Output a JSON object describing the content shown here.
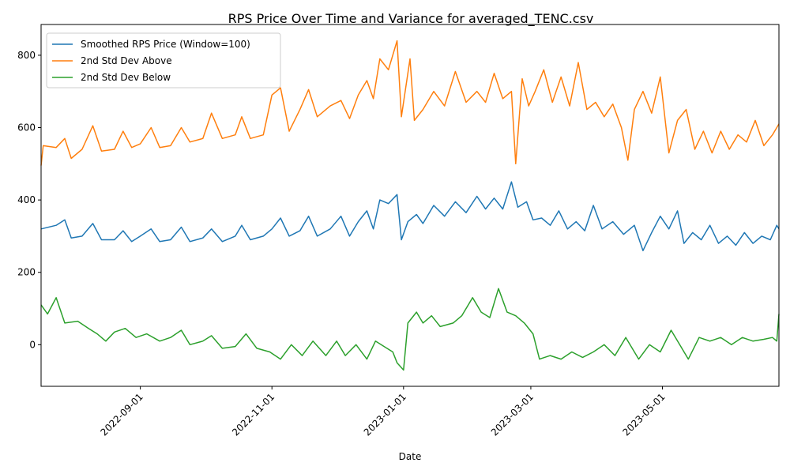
{
  "chart_data": {
    "type": "line",
    "title": "RPS Price Over Time and Variance for averaged_TENC.csv",
    "xlabel": "Date",
    "ylabel": "",
    "x_range": [
      "2022-07-17",
      "2023-06-24"
    ],
    "ylim": [
      -115,
      885
    ],
    "grid": false,
    "legend_position": "top-left",
    "x_ticks": [
      "2022-09-01",
      "2022-11-01",
      "2023-01-01",
      "2023-03-01",
      "2023-05-01"
    ],
    "y_ticks": [
      0,
      200,
      400,
      600,
      800
    ],
    "series": [
      {
        "name": "Smoothed RPS Price (Window=100)",
        "color": "#1f77b4",
        "points": [
          [
            "2022-07-17",
            320
          ],
          [
            "2022-07-24",
            330
          ],
          [
            "2022-07-28",
            345
          ],
          [
            "2022-07-31",
            295
          ],
          [
            "2022-08-05",
            300
          ],
          [
            "2022-08-10",
            335
          ],
          [
            "2022-08-14",
            290
          ],
          [
            "2022-08-20",
            290
          ],
          [
            "2022-08-24",
            315
          ],
          [
            "2022-08-28",
            285
          ],
          [
            "2022-09-01",
            300
          ],
          [
            "2022-09-06",
            320
          ],
          [
            "2022-09-10",
            285
          ],
          [
            "2022-09-15",
            290
          ],
          [
            "2022-09-20",
            325
          ],
          [
            "2022-09-24",
            285
          ],
          [
            "2022-09-30",
            295
          ],
          [
            "2022-10-04",
            320
          ],
          [
            "2022-10-09",
            285
          ],
          [
            "2022-10-15",
            300
          ],
          [
            "2022-10-18",
            330
          ],
          [
            "2022-10-22",
            290
          ],
          [
            "2022-10-28",
            300
          ],
          [
            "2022-11-01",
            320
          ],
          [
            "2022-11-05",
            350
          ],
          [
            "2022-11-09",
            300
          ],
          [
            "2022-11-14",
            315
          ],
          [
            "2022-11-18",
            355
          ],
          [
            "2022-11-22",
            300
          ],
          [
            "2022-11-28",
            320
          ],
          [
            "2022-12-03",
            355
          ],
          [
            "2022-12-07",
            300
          ],
          [
            "2022-12-11",
            340
          ],
          [
            "2022-12-15",
            370
          ],
          [
            "2022-12-18",
            320
          ],
          [
            "2022-12-21",
            400
          ],
          [
            "2022-12-25",
            390
          ],
          [
            "2022-12-29",
            415
          ],
          [
            "2022-12-31",
            290
          ],
          [
            "2023-01-03",
            340
          ],
          [
            "2023-01-07",
            360
          ],
          [
            "2023-01-10",
            335
          ],
          [
            "2023-01-15",
            385
          ],
          [
            "2023-01-20",
            355
          ],
          [
            "2023-01-25",
            395
          ],
          [
            "2023-01-30",
            365
          ],
          [
            "2023-02-04",
            410
          ],
          [
            "2023-02-08",
            375
          ],
          [
            "2023-02-12",
            405
          ],
          [
            "2023-02-16",
            375
          ],
          [
            "2023-02-20",
            450
          ],
          [
            "2023-02-23",
            380
          ],
          [
            "2023-02-27",
            395
          ],
          [
            "2023-03-02",
            345
          ],
          [
            "2023-03-06",
            350
          ],
          [
            "2023-03-10",
            330
          ],
          [
            "2023-03-14",
            370
          ],
          [
            "2023-03-18",
            320
          ],
          [
            "2023-03-22",
            340
          ],
          [
            "2023-03-26",
            315
          ],
          [
            "2023-03-30",
            385
          ],
          [
            "2023-04-03",
            320
          ],
          [
            "2023-04-08",
            340
          ],
          [
            "2023-04-13",
            305
          ],
          [
            "2023-04-18",
            330
          ],
          [
            "2023-04-22",
            260
          ],
          [
            "2023-04-26",
            310
          ],
          [
            "2023-04-30",
            355
          ],
          [
            "2023-05-04",
            320
          ],
          [
            "2023-05-08",
            370
          ],
          [
            "2023-05-11",
            280
          ],
          [
            "2023-05-15",
            310
          ],
          [
            "2023-05-19",
            290
          ],
          [
            "2023-05-23",
            330
          ],
          [
            "2023-05-27",
            280
          ],
          [
            "2023-05-31",
            300
          ],
          [
            "2023-06-04",
            275
          ],
          [
            "2023-06-08",
            310
          ],
          [
            "2023-06-12",
            280
          ],
          [
            "2023-06-16",
            300
          ],
          [
            "2023-06-20",
            290
          ],
          [
            "2023-06-23",
            330
          ],
          [
            "2023-06-24",
            320
          ]
        ]
      },
      {
        "name": "2nd Std Dev Above",
        "color": "#ff7f0e",
        "points": [
          [
            "2022-07-17",
            495
          ],
          [
            "2022-07-18",
            550
          ],
          [
            "2022-07-24",
            545
          ],
          [
            "2022-07-28",
            570
          ],
          [
            "2022-07-31",
            515
          ],
          [
            "2022-08-05",
            540
          ],
          [
            "2022-08-10",
            605
          ],
          [
            "2022-08-14",
            535
          ],
          [
            "2022-08-20",
            540
          ],
          [
            "2022-08-24",
            590
          ],
          [
            "2022-08-28",
            545
          ],
          [
            "2022-09-01",
            555
          ],
          [
            "2022-09-06",
            600
          ],
          [
            "2022-09-10",
            545
          ],
          [
            "2022-09-15",
            550
          ],
          [
            "2022-09-20",
            600
          ],
          [
            "2022-09-24",
            560
          ],
          [
            "2022-09-30",
            570
          ],
          [
            "2022-10-04",
            640
          ],
          [
            "2022-10-09",
            570
          ],
          [
            "2022-10-15",
            580
          ],
          [
            "2022-10-18",
            630
          ],
          [
            "2022-10-22",
            570
          ],
          [
            "2022-10-28",
            580
          ],
          [
            "2022-11-01",
            690
          ],
          [
            "2022-11-05",
            710
          ],
          [
            "2022-11-09",
            590
          ],
          [
            "2022-11-14",
            650
          ],
          [
            "2022-11-18",
            705
          ],
          [
            "2022-11-22",
            630
          ],
          [
            "2022-11-28",
            660
          ],
          [
            "2022-12-03",
            675
          ],
          [
            "2022-12-07",
            625
          ],
          [
            "2022-12-11",
            690
          ],
          [
            "2022-12-15",
            730
          ],
          [
            "2022-12-18",
            680
          ],
          [
            "2022-12-21",
            790
          ],
          [
            "2022-12-25",
            760
          ],
          [
            "2022-12-29",
            840
          ],
          [
            "2022-12-31",
            630
          ],
          [
            "2023-01-04",
            790
          ],
          [
            "2023-01-06",
            620
          ],
          [
            "2023-01-10",
            650
          ],
          [
            "2023-01-15",
            700
          ],
          [
            "2023-01-20",
            660
          ],
          [
            "2023-01-25",
            755
          ],
          [
            "2023-01-30",
            670
          ],
          [
            "2023-02-04",
            700
          ],
          [
            "2023-02-08",
            670
          ],
          [
            "2023-02-12",
            750
          ],
          [
            "2023-02-16",
            680
          ],
          [
            "2023-02-20",
            700
          ],
          [
            "2023-02-22",
            500
          ],
          [
            "2023-02-25",
            735
          ],
          [
            "2023-02-28",
            660
          ],
          [
            "2023-03-03",
            700
          ],
          [
            "2023-03-07",
            760
          ],
          [
            "2023-03-11",
            670
          ],
          [
            "2023-03-15",
            740
          ],
          [
            "2023-03-19",
            660
          ],
          [
            "2023-03-23",
            780
          ],
          [
            "2023-03-27",
            650
          ],
          [
            "2023-03-31",
            670
          ],
          [
            "2023-04-04",
            630
          ],
          [
            "2023-04-08",
            665
          ],
          [
            "2023-04-12",
            600
          ],
          [
            "2023-04-15",
            510
          ],
          [
            "2023-04-18",
            650
          ],
          [
            "2023-04-22",
            700
          ],
          [
            "2023-04-26",
            640
          ],
          [
            "2023-04-30",
            740
          ],
          [
            "2023-05-04",
            530
          ],
          [
            "2023-05-08",
            620
          ],
          [
            "2023-05-12",
            650
          ],
          [
            "2023-05-16",
            540
          ],
          [
            "2023-05-20",
            590
          ],
          [
            "2023-05-24",
            530
          ],
          [
            "2023-05-28",
            590
          ],
          [
            "2023-06-01",
            540
          ],
          [
            "2023-06-05",
            580
          ],
          [
            "2023-06-09",
            560
          ],
          [
            "2023-06-13",
            620
          ],
          [
            "2023-06-17",
            550
          ],
          [
            "2023-06-21",
            580
          ],
          [
            "2023-06-24",
            610
          ]
        ]
      },
      {
        "name": "2nd Std Dev Below",
        "color": "#2ca02c",
        "points": [
          [
            "2022-07-17",
            110
          ],
          [
            "2022-07-20",
            85
          ],
          [
            "2022-07-24",
            130
          ],
          [
            "2022-07-28",
            60
          ],
          [
            "2022-08-03",
            65
          ],
          [
            "2022-08-08",
            45
          ],
          [
            "2022-08-12",
            30
          ],
          [
            "2022-08-16",
            10
          ],
          [
            "2022-08-20",
            35
          ],
          [
            "2022-08-25",
            45
          ],
          [
            "2022-08-30",
            20
          ],
          [
            "2022-09-04",
            30
          ],
          [
            "2022-09-10",
            10
          ],
          [
            "2022-09-15",
            20
          ],
          [
            "2022-09-20",
            40
          ],
          [
            "2022-09-24",
            0
          ],
          [
            "2022-09-30",
            10
          ],
          [
            "2022-10-04",
            25
          ],
          [
            "2022-10-09",
            -10
          ],
          [
            "2022-10-15",
            -5
          ],
          [
            "2022-10-20",
            30
          ],
          [
            "2022-10-25",
            -10
          ],
          [
            "2022-10-31",
            -20
          ],
          [
            "2022-11-05",
            -40
          ],
          [
            "2022-11-10",
            0
          ],
          [
            "2022-11-15",
            -30
          ],
          [
            "2022-11-20",
            10
          ],
          [
            "2022-11-26",
            -30
          ],
          [
            "2022-12-01",
            10
          ],
          [
            "2022-12-05",
            -30
          ],
          [
            "2022-12-10",
            0
          ],
          [
            "2022-12-15",
            -40
          ],
          [
            "2022-12-19",
            10
          ],
          [
            "2022-12-23",
            -5
          ],
          [
            "2022-12-27",
            -20
          ],
          [
            "2022-12-29",
            -50
          ],
          [
            "2023-01-01",
            -70
          ],
          [
            "2023-01-03",
            60
          ],
          [
            "2023-01-07",
            90
          ],
          [
            "2023-01-10",
            60
          ],
          [
            "2023-01-14",
            80
          ],
          [
            "2023-01-18",
            50
          ],
          [
            "2023-01-24",
            60
          ],
          [
            "2023-01-28",
            80
          ],
          [
            "2023-02-02",
            130
          ],
          [
            "2023-02-06",
            90
          ],
          [
            "2023-02-10",
            75
          ],
          [
            "2023-02-14",
            155
          ],
          [
            "2023-02-18",
            90
          ],
          [
            "2023-02-22",
            80
          ],
          [
            "2023-02-26",
            60
          ],
          [
            "2023-03-02",
            30
          ],
          [
            "2023-03-05",
            -40
          ],
          [
            "2023-03-10",
            -30
          ],
          [
            "2023-03-15",
            -40
          ],
          [
            "2023-03-20",
            -20
          ],
          [
            "2023-03-25",
            -35
          ],
          [
            "2023-03-30",
            -20
          ],
          [
            "2023-04-04",
            0
          ],
          [
            "2023-04-09",
            -30
          ],
          [
            "2023-04-14",
            20
          ],
          [
            "2023-04-20",
            -40
          ],
          [
            "2023-04-25",
            0
          ],
          [
            "2023-04-30",
            -20
          ],
          [
            "2023-05-05",
            40
          ],
          [
            "2023-05-09",
            0
          ],
          [
            "2023-05-13",
            -40
          ],
          [
            "2023-05-18",
            20
          ],
          [
            "2023-05-23",
            10
          ],
          [
            "2023-05-28",
            20
          ],
          [
            "2023-06-02",
            0
          ],
          [
            "2023-06-07",
            20
          ],
          [
            "2023-06-12",
            10
          ],
          [
            "2023-06-17",
            15
          ],
          [
            "2023-06-21",
            20
          ],
          [
            "2023-06-23",
            10
          ],
          [
            "2023-06-24",
            85
          ]
        ]
      }
    ]
  }
}
